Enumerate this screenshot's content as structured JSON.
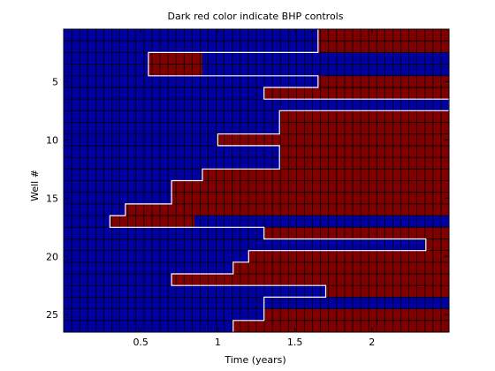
{
  "chart_data": {
    "type": "heatmap",
    "title": "Dark red color indicate BHP controls",
    "xlabel": "Time (years)",
    "ylabel": "Well #",
    "xlim": [
      0,
      2.5
    ],
    "ylim": [
      0.5,
      26.5
    ],
    "x_ticks": [
      0.5,
      1,
      1.5,
      2
    ],
    "x_tick_labels": [
      "0.5",
      "1",
      "1.5",
      "2"
    ],
    "y_ticks": [
      5,
      10,
      15,
      20,
      25
    ],
    "y_tick_labels": [
      "5",
      "10",
      "15",
      "20",
      "25"
    ],
    "y_reversed": true,
    "grid": true,
    "colors": {
      "bhp": "#800000",
      "other": "#0000a0",
      "background": "#ffffff"
    },
    "legend": "none",
    "bhp_start_years": [
      1.65,
      1.65,
      0.55,
      0.55,
      1.65,
      1.3,
      2.5,
      1.4,
      1.4,
      1.0,
      1.4,
      1.4,
      0.9,
      0.7,
      0.7,
      0.4,
      0.3,
      1.3,
      2.35,
      1.2,
      1.1,
      0.7,
      1.7,
      1.3,
      1.3,
      1.1
    ],
    "bhp_end_years": [
      2.5,
      2.5,
      0.9,
      0.9,
      2.5,
      2.5,
      2.5,
      2.5,
      2.5,
      2.5,
      2.5,
      2.5,
      2.5,
      2.5,
      2.5,
      2.5,
      0.85,
      2.5,
      2.5,
      2.5,
      2.5,
      2.5,
      2.5,
      0.85,
      2.5,
      2.5
    ]
  }
}
